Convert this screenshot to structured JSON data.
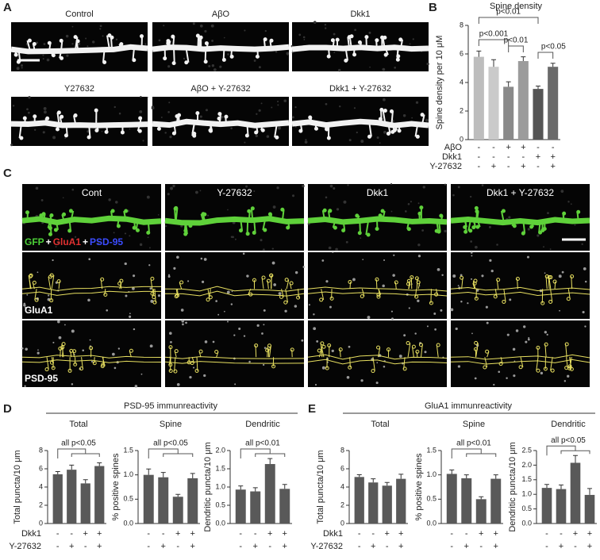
{
  "panel_labels": [
    "A",
    "B",
    "C",
    "D",
    "E"
  ],
  "panel_a": {
    "images": [
      "Control",
      "AβO",
      "Dkk1",
      "Y27632",
      "AβO + Y-27632",
      "Dkk1 + Y-27632"
    ]
  },
  "panel_c": {
    "columns": [
      "Cont",
      "Y-27632",
      "Dkk1",
      "Dkk1 + Y-27632"
    ],
    "channel_legend": [
      {
        "text": "GFP",
        "color": "#4cd137"
      },
      {
        "text": "+",
        "color": "#ffffff"
      },
      {
        "text": "GluA1",
        "color": "#e03030"
      },
      {
        "text": "+",
        "color": "#ffffff"
      },
      {
        "text": "PSD-95",
        "color": "#3b4cff"
      }
    ],
    "rows": [
      "GluA1",
      "PSD-95"
    ]
  },
  "panel_d": {
    "title": "PSD-95 immunreactivity"
  },
  "panel_e": {
    "title": "GluA1 immunreactivity"
  },
  "chart_data": [
    {
      "type": "bar",
      "title": "Spine density",
      "ylabel": "Spine density per 10 μM",
      "values": [
        5.8,
        5.1,
        3.7,
        5.5,
        3.55,
        5.1
      ],
      "errors": [
        0.4,
        0.5,
        0.35,
        0.3,
        0.2,
        0.25
      ],
      "colors": [
        "#bdbdbd",
        "#cacaca",
        "#8a8a8a",
        "#9c9c9c",
        "#555555",
        "#6a6a6a"
      ],
      "ylim": [
        0,
        8
      ],
      "yticks": [
        0,
        2,
        4,
        6,
        8
      ],
      "conditions": [
        {
          "name": "AβO",
          "signs": [
            "-",
            "-",
            "+",
            "+",
            "-",
            "-"
          ]
        },
        {
          "name": "Dkk1",
          "signs": [
            "-",
            "-",
            "-",
            "-",
            "+",
            "+"
          ]
        },
        {
          "name": "Y-27632",
          "signs": [
            "-",
            "+",
            "-",
            "+",
            "-",
            "+"
          ]
        }
      ],
      "annotations": [
        "p<0.01",
        "p<0.001",
        "p<0.01",
        "p<0.05"
      ]
    },
    {
      "type": "bar",
      "title": "Total",
      "ylabel": "Total puncta/10 μm",
      "values": [
        5.4,
        5.9,
        4.4,
        6.3
      ],
      "errors": [
        0.3,
        0.5,
        0.4,
        0.35
      ],
      "color": "#595959",
      "ylim": [
        0,
        8
      ],
      "yticks": [
        0,
        2,
        4,
        6,
        8
      ],
      "conditions": [
        {
          "name": "Dkk1",
          "signs": [
            "-",
            "-",
            "+",
            "+"
          ]
        },
        {
          "name": "Y-27632",
          "signs": [
            "-",
            "+",
            "-",
            "+"
          ]
        }
      ],
      "annotations": [
        "all p<0.05"
      ]
    },
    {
      "type": "bar",
      "title": "Spine",
      "ylabel": "% positive spines",
      "values": [
        1.0,
        0.95,
        0.55,
        0.93
      ],
      "errors": [
        0.12,
        0.1,
        0.05,
        0.1
      ],
      "color": "#595959",
      "ylim": [
        0,
        1.5
      ],
      "yticks": [
        {
          "value": 0,
          "label": "0.0"
        },
        0.5,
        {
          "value": 1,
          "label": "1.0"
        },
        1.5
      ],
      "conditions": [
        {
          "signs": [
            "-",
            "-",
            "+",
            "+"
          ]
        },
        {
          "signs": [
            "-",
            "+",
            "-",
            "+"
          ]
        }
      ],
      "annotations": [
        "all p<0.05"
      ]
    },
    {
      "type": "bar",
      "title": "Dendritic",
      "ylabel": "Dendritic puncta/10 μm",
      "values": [
        0.93,
        0.88,
        1.63,
        0.95
      ],
      "errors": [
        0.1,
        0.1,
        0.15,
        0.12
      ],
      "color": "#595959",
      "ylim": [
        0,
        2
      ],
      "yticks": [
        {
          "value": 0,
          "label": "0.0"
        },
        0.5,
        {
          "value": 1,
          "label": "1.0"
        },
        1.5,
        {
          "value": 2,
          "label": "2.0"
        }
      ],
      "conditions": [
        {
          "signs": [
            "-",
            "-",
            "+",
            "+"
          ]
        },
        {
          "signs": [
            "-",
            "+",
            "-",
            "+"
          ]
        }
      ],
      "annotations": [
        "all p<0.01"
      ]
    },
    {
      "type": "bar",
      "title": "Total",
      "ylabel": "Total puncta/10 μm",
      "values": [
        5.1,
        4.5,
        4.15,
        4.9
      ],
      "errors": [
        0.25,
        0.4,
        0.35,
        0.5
      ],
      "color": "#595959",
      "ylim": [
        0,
        8
      ],
      "yticks": [
        0,
        2,
        4,
        6,
        8
      ],
      "conditions": [
        {
          "name": "Dkk1",
          "signs": [
            "-",
            "-",
            "+",
            "+"
          ]
        },
        {
          "name": "Y-27632",
          "signs": [
            "-",
            "+",
            "-",
            "+"
          ]
        }
      ]
    },
    {
      "type": "bar",
      "title": "Spine",
      "ylabel": "% positive spines",
      "values": [
        1.02,
        0.93,
        0.5,
        0.92
      ],
      "errors": [
        0.08,
        0.07,
        0.05,
        0.08
      ],
      "color": "#595959",
      "ylim": [
        0,
        1.5
      ],
      "yticks": [
        {
          "value": 0,
          "label": "0.0"
        },
        0.5,
        {
          "value": 1,
          "label": "1.0"
        },
        1.5
      ],
      "conditions": [
        {
          "signs": [
            "-",
            "-",
            "+",
            "+"
          ]
        },
        {
          "signs": [
            "-",
            "+",
            "-",
            "+"
          ]
        }
      ],
      "annotations": [
        "all p<0.01"
      ]
    },
    {
      "type": "bar",
      "title": "Dendritic",
      "ylabel": "Dendritic puncta/10 μm",
      "values": [
        1.22,
        1.18,
        2.08,
        0.98
      ],
      "errors": [
        0.12,
        0.14,
        0.25,
        0.22
      ],
      "color": "#595959",
      "ylim": [
        0,
        2.5
      ],
      "yticks": [
        {
          "value": 0,
          "label": "0.0"
        },
        0.5,
        {
          "value": 1,
          "label": "1.0"
        },
        1.5,
        {
          "value": 2,
          "label": "2.0"
        },
        2.5
      ],
      "conditions": [
        {
          "signs": [
            "-",
            "-",
            "+",
            "+"
          ]
        },
        {
          "signs": [
            "-",
            "+",
            "-",
            "+"
          ]
        }
      ],
      "annotations": [
        "all p<0.05"
      ]
    }
  ]
}
